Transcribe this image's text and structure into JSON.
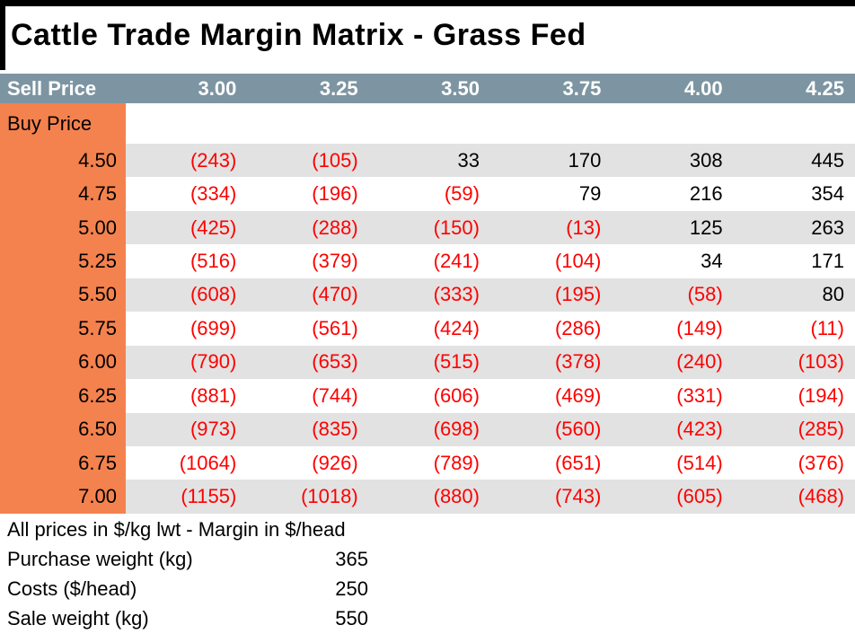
{
  "title": "Cattle Trade Margin Matrix - Grass Fed",
  "colors": {
    "header_bg": "#7D95A2",
    "header_text": "#FFFFFF",
    "buy_column_bg": "#F4824E",
    "stripe_bg": "#E2E2E2",
    "negative_text": "#FE0000",
    "positive_text": "#000000",
    "border": "#000000"
  },
  "matrix": {
    "corner_label": "Sell Price",
    "row_header_label": "Buy Price",
    "sell_prices": [
      "3.00",
      "3.25",
      "3.50",
      "3.75",
      "4.00",
      "4.25"
    ],
    "rows": [
      {
        "buy_price": "4.50",
        "cells": [
          "(243)",
          "(105)",
          "33",
          "170",
          "308",
          "445"
        ]
      },
      {
        "buy_price": "4.75",
        "cells": [
          "(334)",
          "(196)",
          "(59)",
          "79",
          "216",
          "354"
        ]
      },
      {
        "buy_price": "5.00",
        "cells": [
          "(425)",
          "(288)",
          "(150)",
          "(13)",
          "125",
          "263"
        ]
      },
      {
        "buy_price": "5.25",
        "cells": [
          "(516)",
          "(379)",
          "(241)",
          "(104)",
          "34",
          "171"
        ]
      },
      {
        "buy_price": "5.50",
        "cells": [
          "(608)",
          "(470)",
          "(333)",
          "(195)",
          "(58)",
          "80"
        ]
      },
      {
        "buy_price": "5.75",
        "cells": [
          "(699)",
          "(561)",
          "(424)",
          "(286)",
          "(149)",
          "(11)"
        ]
      },
      {
        "buy_price": "6.00",
        "cells": [
          "(790)",
          "(653)",
          "(515)",
          "(378)",
          "(240)",
          "(103)"
        ]
      },
      {
        "buy_price": "6.25",
        "cells": [
          "(881)",
          "(744)",
          "(606)",
          "(469)",
          "(331)",
          "(194)"
        ]
      },
      {
        "buy_price": "6.50",
        "cells": [
          "(973)",
          "(835)",
          "(698)",
          "(560)",
          "(423)",
          "(285)"
        ]
      },
      {
        "buy_price": "6.75",
        "cells": [
          "(1064)",
          "(926)",
          "(789)",
          "(651)",
          "(514)",
          "(376)"
        ]
      },
      {
        "buy_price": "7.00",
        "cells": [
          "(1155)",
          "(1018)",
          "(880)",
          "(743)",
          "(605)",
          "(468)"
        ]
      }
    ]
  },
  "footer": {
    "note": "All prices in $/kg lwt - Margin in $/head",
    "params": [
      {
        "label": "Purchase weight (kg)",
        "value": "365"
      },
      {
        "label": "Costs ($/head)",
        "value": "250"
      },
      {
        "label": "Sale weight (kg)",
        "value": "550"
      }
    ]
  }
}
